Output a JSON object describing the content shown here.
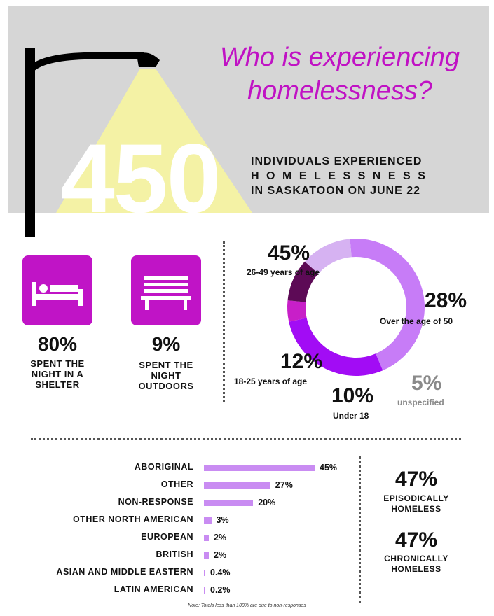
{
  "header": {
    "title_line1": "Who is experiencing",
    "title_line2": "homelessness?",
    "big_number": "450",
    "individuals_line1": "INDIVIDUALS EXPERIENCED",
    "individuals_line2": "HOMELESSNESS",
    "individuals_line3": "IN SASKATOON ON JUNE 22"
  },
  "sleeping": [
    {
      "icon": "bed-icon",
      "percent": "80%",
      "label_line1": "SPENT THE",
      "label_line2": "NIGHT IN A",
      "label_line3": "SHELTER"
    },
    {
      "icon": "bench-icon",
      "percent": "9%",
      "label_line1": "SPENT THE",
      "label_line2": "NIGHT",
      "label_line3": "OUTDOORS"
    }
  ],
  "chart_data": [
    {
      "type": "pie",
      "categories": [
        "26-49 years of age",
        "Over the age of 50",
        "unspecified",
        "Under 18",
        "18-25 years of age"
      ],
      "values": [
        45,
        28,
        5,
        10,
        12
      ],
      "value_labels": [
        "45%",
        "28%",
        "5%",
        "10%",
        "12%"
      ],
      "colors": [
        "#c77cf7",
        "#a20cf5",
        "#c81fc8",
        "#5d0a56",
        "#d6b2f2"
      ]
    },
    {
      "type": "bar",
      "orientation": "horizontal",
      "categories": [
        "ABORIGINAL",
        "OTHER",
        "NON-RESPONSE",
        "OTHER NORTH AMERICAN",
        "EUROPEAN",
        "BRITISH",
        "ASIAN AND MIDDLE EASTERN",
        "LATIN AMERICAN"
      ],
      "values": [
        45,
        27,
        20,
        3,
        2,
        2,
        0.4,
        0.2
      ],
      "value_labels": [
        "45%",
        "27%",
        "20%",
        "3%",
        "2%",
        "2%",
        "0.4%",
        "0.2%"
      ],
      "color": "#c98cf2"
    }
  ],
  "homeless_type": [
    {
      "percent": "47%",
      "label_line1": "EPISODICALLY",
      "label_line2": "HOMELESS"
    },
    {
      "percent": "47%",
      "label_line1": "CHRONICALLY",
      "label_line2": "HOMELESS"
    }
  ],
  "note": "Note: Totals less than 100% are due to non-responses"
}
